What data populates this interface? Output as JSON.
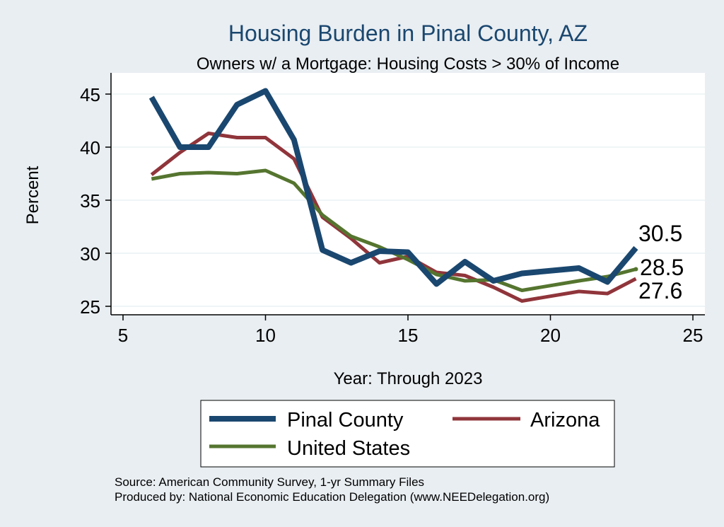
{
  "chart_data": {
    "type": "line",
    "title": "Housing Burden in Pinal County, AZ",
    "subtitle": "Owners w/ a Mortgage: Housing Costs > 30% of Income",
    "xlabel": "Year: Through 2023",
    "ylabel": "Percent",
    "xlim": [
      5,
      25
    ],
    "ylim": [
      24.2,
      46
    ],
    "xticks": [
      5,
      10,
      15,
      20,
      25
    ],
    "yticks": [
      25,
      30,
      35,
      40,
      45
    ],
    "grid": true,
    "legend_position": "bottom",
    "series": [
      {
        "name": "Pinal County",
        "color": "#1a476f",
        "x": [
          6,
          7,
          8,
          9,
          10,
          11,
          12,
          13,
          14,
          15,
          16,
          17,
          18,
          19,
          21,
          22,
          23
        ],
        "values": [
          44.7,
          40.0,
          40.0,
          44.0,
          45.3,
          40.7,
          30.3,
          29.1,
          30.2,
          30.1,
          27.1,
          29.2,
          27.4,
          28.1,
          28.6,
          27.3,
          30.5
        ],
        "end_label": "30.5"
      },
      {
        "name": "Arizona",
        "color": "#90353b",
        "x": [
          6,
          7,
          8,
          9,
          10,
          11,
          12,
          13,
          14,
          15,
          16,
          17,
          18,
          19,
          21,
          22,
          23
        ],
        "values": [
          37.4,
          39.5,
          41.3,
          40.9,
          40.9,
          38.9,
          33.4,
          31.4,
          29.1,
          29.7,
          28.2,
          27.9,
          26.8,
          25.5,
          26.4,
          26.2,
          27.6
        ],
        "end_label": "27.6"
      },
      {
        "name": "United States",
        "color": "#55752f",
        "x": [
          6,
          7,
          8,
          9,
          10,
          11,
          12,
          13,
          14,
          15,
          16,
          17,
          18,
          19,
          21,
          22,
          23
        ],
        "values": [
          37.0,
          37.5,
          37.6,
          37.5,
          37.8,
          36.6,
          33.6,
          31.6,
          30.6,
          29.4,
          28.0,
          27.4,
          27.5,
          26.5,
          27.4,
          27.8,
          28.5
        ],
        "end_label": "28.5"
      }
    ],
    "notes": [
      "Source: American Community Survey, 1-yr Summary Files",
      "Produced by: National Economic Education Delegation (www.NEEDelegation.org)"
    ]
  }
}
